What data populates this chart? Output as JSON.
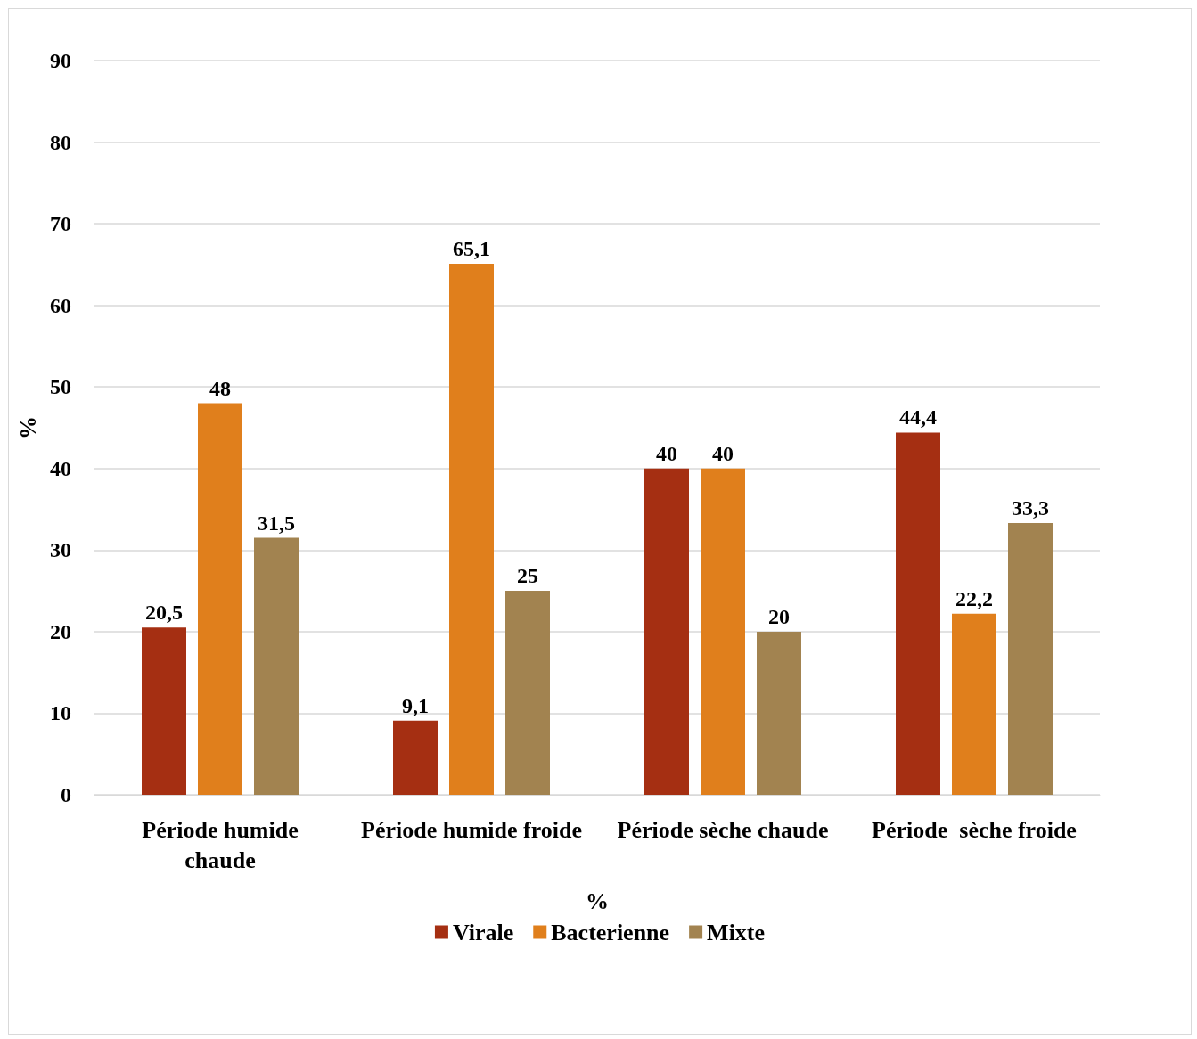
{
  "chart_data": {
    "type": "bar",
    "ylabel": "%",
    "xlabel": "%",
    "categories": [
      "Période humide\nchaude",
      "Période humide froide",
      "Période sèche chaude",
      "Période  sèche froide"
    ],
    "series": [
      {
        "name": "Virale",
        "color": "#a52f12",
        "values": [
          20.5,
          9.1,
          40,
          44.4
        ],
        "value_labels": [
          "20,5",
          "9,1",
          "40",
          "44,4"
        ]
      },
      {
        "name": "Bacterienne",
        "color": "#e07f1c",
        "values": [
          48,
          65.1,
          40,
          22.2
        ],
        "value_labels": [
          "48",
          "65,1",
          "40",
          "22,2"
        ]
      },
      {
        "name": "Mixte",
        "color": "#a28350",
        "values": [
          31.5,
          25,
          20,
          33.3
        ],
        "value_labels": [
          "31,5",
          "25",
          "20",
          "33,3"
        ]
      }
    ],
    "ylim": [
      0,
      90
    ],
    "yticks": [
      0,
      10,
      20,
      30,
      40,
      50,
      60,
      70,
      80,
      90
    ],
    "grid": "y",
    "legend": "bottom"
  }
}
